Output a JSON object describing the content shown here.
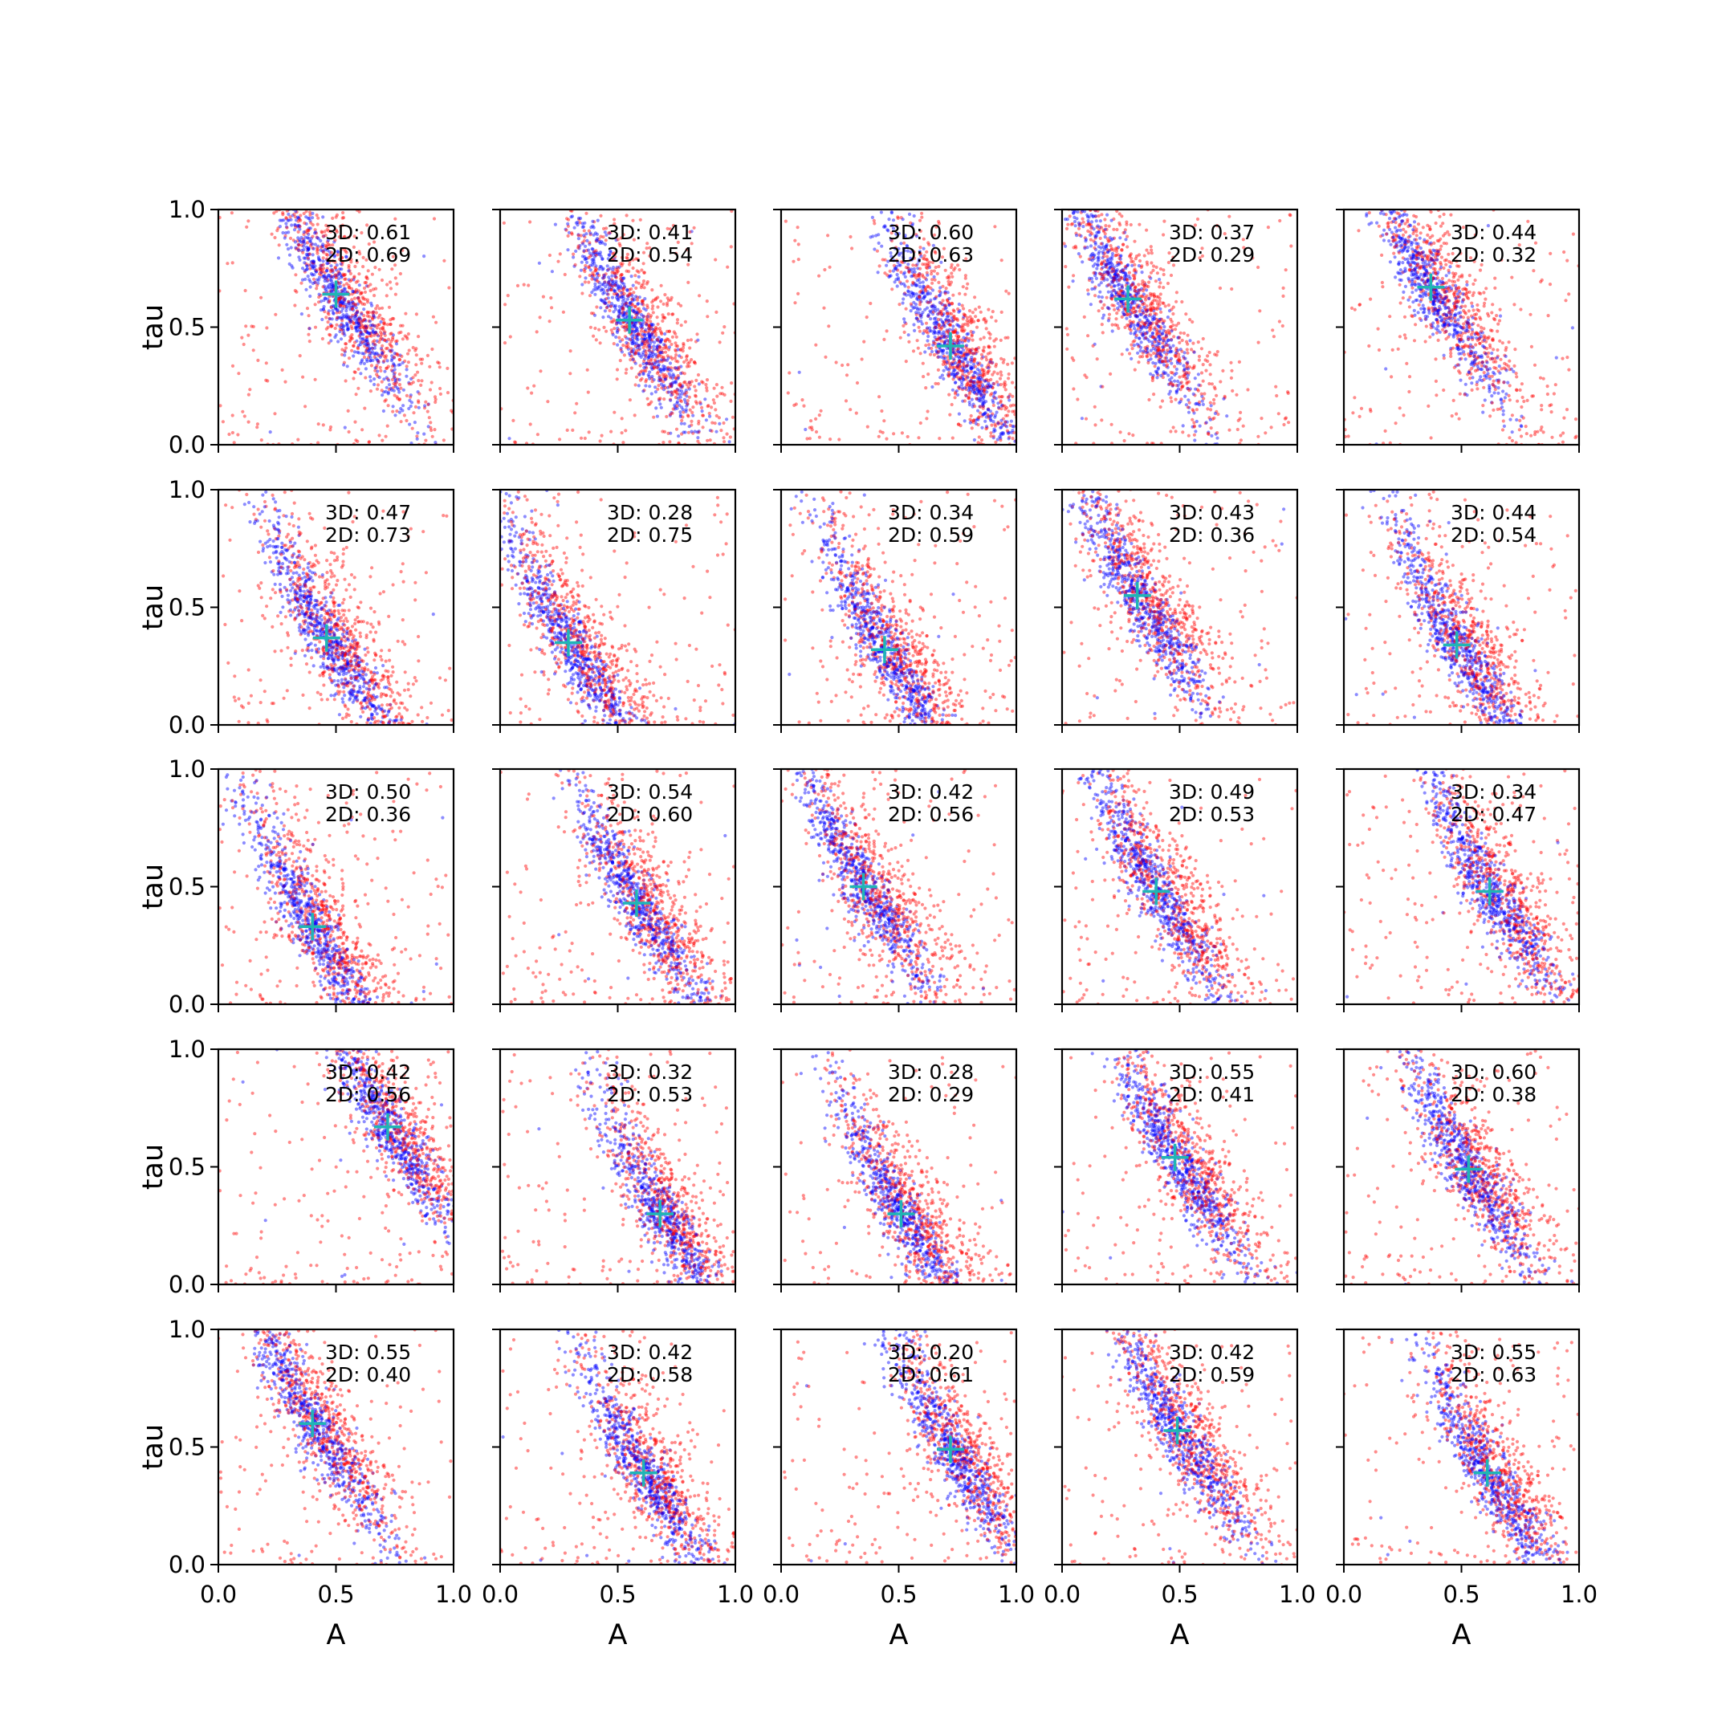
{
  "figure": {
    "xlabel": "A",
    "ylabel": "tau",
    "xticks": [
      "0.0",
      "0.5",
      "1.0"
    ],
    "yticks": [
      "0.0",
      "0.5",
      "1.0"
    ],
    "colors": {
      "series_3d": "#0000ff",
      "series_2d": "#ff0000",
      "marker": "#1fb5b5"
    }
  },
  "chart_data": [
    {
      "type": "scatter",
      "row": 0,
      "col": 0,
      "label_3d": "3D: 0.61",
      "label_2d": "2D: 0.69",
      "marker": [
        0.5,
        0.64
      ],
      "xlim": [
        0,
        1
      ],
      "ylim": [
        0,
        1
      ]
    },
    {
      "type": "scatter",
      "row": 0,
      "col": 1,
      "label_3d": "3D: 0.41",
      "label_2d": "2D: 0.54",
      "marker": [
        0.55,
        0.53
      ],
      "xlim": [
        0,
        1
      ],
      "ylim": [
        0,
        1
      ]
    },
    {
      "type": "scatter",
      "row": 0,
      "col": 2,
      "label_3d": "3D: 0.60",
      "label_2d": "2D: 0.63",
      "marker": [
        0.72,
        0.42
      ],
      "xlim": [
        0,
        1
      ],
      "ylim": [
        0,
        1
      ]
    },
    {
      "type": "scatter",
      "row": 0,
      "col": 3,
      "label_3d": "3D: 0.37",
      "label_2d": "2D: 0.29",
      "marker": [
        0.28,
        0.62
      ],
      "xlim": [
        0,
        1
      ],
      "ylim": [
        0,
        1
      ]
    },
    {
      "type": "scatter",
      "row": 0,
      "col": 4,
      "label_3d": "3D: 0.44",
      "label_2d": "2D: 0.32",
      "marker": [
        0.37,
        0.67
      ],
      "xlim": [
        0,
        1
      ],
      "ylim": [
        0,
        1
      ]
    },
    {
      "type": "scatter",
      "row": 1,
      "col": 0,
      "label_3d": "3D: 0.47",
      "label_2d": "2D: 0.73",
      "marker": [
        0.46,
        0.37
      ],
      "xlim": [
        0,
        1
      ],
      "ylim": [
        0,
        1
      ]
    },
    {
      "type": "scatter",
      "row": 1,
      "col": 1,
      "label_3d": "3D: 0.28",
      "label_2d": "2D: 0.75",
      "marker": [
        0.29,
        0.35
      ],
      "xlim": [
        0,
        1
      ],
      "ylim": [
        0,
        1
      ]
    },
    {
      "type": "scatter",
      "row": 1,
      "col": 2,
      "label_3d": "3D: 0.34",
      "label_2d": "2D: 0.59",
      "marker": [
        0.44,
        0.32
      ],
      "xlim": [
        0,
        1
      ],
      "ylim": [
        0,
        1
      ]
    },
    {
      "type": "scatter",
      "row": 1,
      "col": 3,
      "label_3d": "3D: 0.43",
      "label_2d": "2D: 0.36",
      "marker": [
        0.32,
        0.55
      ],
      "xlim": [
        0,
        1
      ],
      "ylim": [
        0,
        1
      ]
    },
    {
      "type": "scatter",
      "row": 1,
      "col": 4,
      "label_3d": "3D: 0.44",
      "label_2d": "2D: 0.54",
      "marker": [
        0.48,
        0.34
      ],
      "xlim": [
        0,
        1
      ],
      "ylim": [
        0,
        1
      ]
    },
    {
      "type": "scatter",
      "row": 2,
      "col": 0,
      "label_3d": "3D: 0.50",
      "label_2d": "2D: 0.36",
      "marker": [
        0.4,
        0.33
      ],
      "xlim": [
        0,
        1
      ],
      "ylim": [
        0,
        1
      ]
    },
    {
      "type": "scatter",
      "row": 2,
      "col": 1,
      "label_3d": "3D: 0.54",
      "label_2d": "2D: 0.60",
      "marker": [
        0.58,
        0.43
      ],
      "xlim": [
        0,
        1
      ],
      "ylim": [
        0,
        1
      ]
    },
    {
      "type": "scatter",
      "row": 2,
      "col": 2,
      "label_3d": "3D: 0.42",
      "label_2d": "2D: 0.56",
      "marker": [
        0.35,
        0.5
      ],
      "xlim": [
        0,
        1
      ],
      "ylim": [
        0,
        1
      ]
    },
    {
      "type": "scatter",
      "row": 2,
      "col": 3,
      "label_3d": "3D: 0.49",
      "label_2d": "2D: 0.53",
      "marker": [
        0.4,
        0.48
      ],
      "xlim": [
        0,
        1
      ],
      "ylim": [
        0,
        1
      ]
    },
    {
      "type": "scatter",
      "row": 2,
      "col": 4,
      "label_3d": "3D: 0.34",
      "label_2d": "2D: 0.47",
      "marker": [
        0.62,
        0.48
      ],
      "xlim": [
        0,
        1
      ],
      "ylim": [
        0,
        1
      ]
    },
    {
      "type": "scatter",
      "row": 3,
      "col": 0,
      "label_3d": "3D: 0.42",
      "label_2d": "2D: 0.56",
      "marker": [
        0.72,
        0.67
      ],
      "xlim": [
        0,
        1
      ],
      "ylim": [
        0,
        1
      ]
    },
    {
      "type": "scatter",
      "row": 3,
      "col": 1,
      "label_3d": "3D: 0.32",
      "label_2d": "2D: 0.53",
      "marker": [
        0.68,
        0.3
      ],
      "xlim": [
        0,
        1
      ],
      "ylim": [
        0,
        1
      ]
    },
    {
      "type": "scatter",
      "row": 3,
      "col": 2,
      "label_3d": "3D: 0.28",
      "label_2d": "2D: 0.29",
      "marker": [
        0.51,
        0.3
      ],
      "xlim": [
        0,
        1
      ],
      "ylim": [
        0,
        1
      ]
    },
    {
      "type": "scatter",
      "row": 3,
      "col": 3,
      "label_3d": "3D: 0.55",
      "label_2d": "2D: 0.41",
      "marker": [
        0.48,
        0.54
      ],
      "xlim": [
        0,
        1
      ],
      "ylim": [
        0,
        1
      ]
    },
    {
      "type": "scatter",
      "row": 3,
      "col": 4,
      "label_3d": "3D: 0.60",
      "label_2d": "2D: 0.38",
      "marker": [
        0.53,
        0.49
      ],
      "xlim": [
        0,
        1
      ],
      "ylim": [
        0,
        1
      ]
    },
    {
      "type": "scatter",
      "row": 4,
      "col": 0,
      "label_3d": "3D: 0.55",
      "label_2d": "2D: 0.40",
      "marker": [
        0.4,
        0.6
      ],
      "xlim": [
        0,
        1
      ],
      "ylim": [
        0,
        1
      ]
    },
    {
      "type": "scatter",
      "row": 4,
      "col": 1,
      "label_3d": "3D: 0.42",
      "label_2d": "2D: 0.58",
      "marker": [
        0.61,
        0.39
      ],
      "xlim": [
        0,
        1
      ],
      "ylim": [
        0,
        1
      ]
    },
    {
      "type": "scatter",
      "row": 4,
      "col": 2,
      "label_3d": "3D: 0.20",
      "label_2d": "2D: 0.61",
      "marker": [
        0.72,
        0.49
      ],
      "xlim": [
        0,
        1
      ],
      "ylim": [
        0,
        1
      ]
    },
    {
      "type": "scatter",
      "row": 4,
      "col": 3,
      "label_3d": "3D: 0.42",
      "label_2d": "2D: 0.59",
      "marker": [
        0.49,
        0.57
      ],
      "xlim": [
        0,
        1
      ],
      "ylim": [
        0,
        1
      ]
    },
    {
      "type": "scatter",
      "row": 4,
      "col": 4,
      "label_3d": "3D: 0.55",
      "label_2d": "2D: 0.63",
      "marker": [
        0.61,
        0.39
      ],
      "xlim": [
        0,
        1
      ],
      "ylim": [
        0,
        1
      ]
    }
  ]
}
